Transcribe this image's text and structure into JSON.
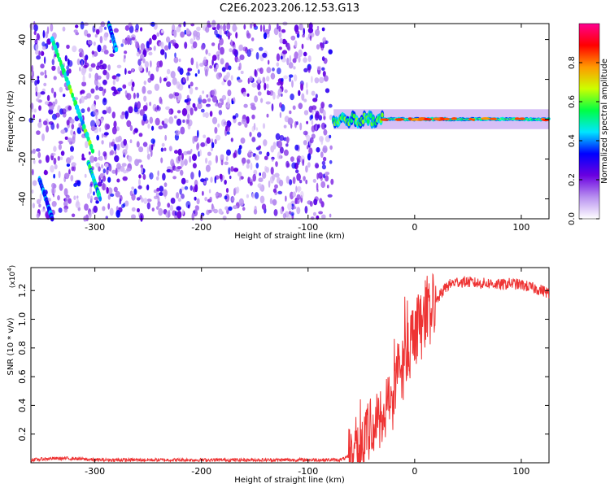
{
  "figure": {
    "title": "C2E6.2023.206.12.53.G13"
  },
  "chart_data": [
    {
      "type": "heatmap",
      "title": "C2E6.2023.206.12.53.G13",
      "xlabel": "Height of straight line (km)",
      "ylabel": "Frequency (Hz)",
      "xlim": [
        -360,
        126
      ],
      "ylim": [
        -50,
        48
      ],
      "xticks": [
        -300,
        -200,
        -100,
        0,
        100
      ],
      "yticks": [
        -40,
        -20,
        0,
        20,
        40
      ],
      "colorbar": {
        "label": "Normalized spectral amplitude",
        "range": [
          0.0,
          1.0
        ],
        "ticks": [
          0.0,
          0.2,
          0.4,
          0.6,
          0.8
        ],
        "colormap": [
          "#ffffff",
          "#b890f0",
          "#6a00e0",
          "#0000ff",
          "#00e5ff",
          "#00ff44",
          "#ccff00",
          "#ff9900",
          "#ff0000",
          "#ff0090"
        ]
      },
      "features": [
        {
          "name": "noise",
          "x_range": [
            -360,
            -76
          ],
          "y_range": [
            -50,
            48
          ],
          "amplitude": 0.15
        },
        {
          "name": "streak",
          "x_start": -340,
          "y_start": 40,
          "x_end": -302,
          "y_end": -16,
          "amplitude": 0.55
        },
        {
          "name": "streak",
          "x_start": -306,
          "y_start": -22,
          "x_end": -295,
          "y_end": -40,
          "amplitude": 0.5
        },
        {
          "name": "streak",
          "x_start": -287,
          "y_start": 48,
          "x_end": -280,
          "y_end": 35,
          "amplitude": 0.4
        },
        {
          "name": "streak",
          "x_start": -352,
          "y_start": -30,
          "x_end": -340,
          "y_end": -50,
          "amplitude": 0.4
        },
        {
          "name": "signal_band",
          "x_range": [
            -76,
            126
          ],
          "center_hz": 0,
          "amplitude": 0.7
        }
      ]
    },
    {
      "type": "line",
      "xlabel": "Height of straight line (km)",
      "ylabel": "SNR (10 * v/v)",
      "y_multiplier": "(x10",
      "y_multiplier_exp": "4",
      "y_multiplier_close": ")",
      "xlim": [
        -360,
        126
      ],
      "ylim": [
        0,
        1.36
      ],
      "xticks": [
        -300,
        -200,
        -100,
        0,
        100
      ],
      "yticks": [
        0.2,
        0.4,
        0.6,
        0.8,
        1.0,
        1.2
      ],
      "color": "#ee3333",
      "x": [
        -360,
        -340,
        -320,
        -300,
        -280,
        -260,
        -240,
        -220,
        -200,
        -180,
        -160,
        -140,
        -120,
        -100,
        -90,
        -80,
        -70,
        -62,
        -55,
        -48,
        -42,
        -36,
        -30,
        -25,
        -20,
        -15,
        -10,
        -5,
        0,
        5,
        10,
        15,
        20,
        25,
        30,
        35,
        40,
        50,
        60,
        70,
        80,
        90,
        100,
        110,
        120,
        126
      ],
      "y": [
        0.02,
        0.03,
        0.03,
        0.02,
        0.02,
        0.02,
        0.02,
        0.02,
        0.02,
        0.02,
        0.02,
        0.02,
        0.02,
        0.02,
        0.02,
        0.02,
        0.02,
        0.04,
        0.12,
        0.18,
        0.22,
        0.27,
        0.33,
        0.4,
        0.5,
        0.6,
        0.73,
        0.82,
        0.9,
        0.97,
        1.02,
        1.07,
        1.12,
        1.18,
        1.23,
        1.25,
        1.26,
        1.26,
        1.25,
        1.25,
        1.24,
        1.25,
        1.24,
        1.22,
        1.2,
        1.18
      ]
    }
  ]
}
